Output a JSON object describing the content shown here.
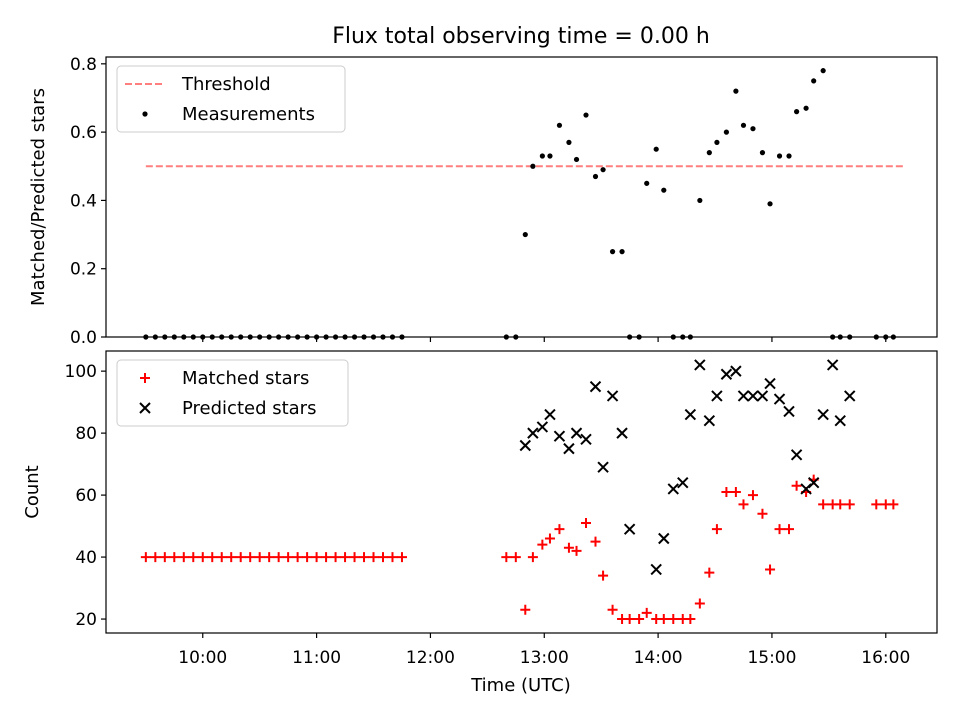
{
  "title": "Flux total observing time = 0.00 h",
  "x_axis": {
    "label": "Time (UTC)",
    "ticks": [
      {
        "t": 10.0,
        "label": "10:00"
      },
      {
        "t": 11.0,
        "label": "11:00"
      },
      {
        "t": 12.0,
        "label": "12:00"
      },
      {
        "t": 13.0,
        "label": "13:00"
      },
      {
        "t": 14.0,
        "label": "14:00"
      },
      {
        "t": 15.0,
        "label": "15:00"
      },
      {
        "t": 16.0,
        "label": "16:00"
      }
    ]
  },
  "chart_data": [
    {
      "type": "line+scatter",
      "ylabel": "Matched/Predicted stars",
      "xlim": [
        "09:09",
        "16:27"
      ],
      "ylim": [
        0,
        0.82
      ],
      "yticks": [
        {
          "v": 0.0,
          "label": "0.0"
        },
        {
          "v": 0.2,
          "label": "0.2"
        },
        {
          "v": 0.4,
          "label": "0.4"
        },
        {
          "v": 0.6,
          "label": "0.6"
        },
        {
          "v": 0.8,
          "label": "0.8"
        }
      ],
      "legend": {
        "position": "top-left",
        "entries": [
          "Threshold",
          "Measurements"
        ]
      },
      "series": [
        {
          "name": "Threshold",
          "style": "dashed-line",
          "color": "#ff7f7f",
          "x": [
            "09:30",
            "16:10"
          ],
          "y": [
            0.5,
            0.5
          ]
        },
        {
          "name": "Measurements",
          "style": "dot",
          "color": "#000000",
          "x": [
            "09:30",
            "09:35",
            "09:40",
            "09:45",
            "09:50",
            "09:55",
            "10:00",
            "10:05",
            "10:10",
            "10:15",
            "10:20",
            "10:25",
            "10:30",
            "10:35",
            "10:40",
            "10:45",
            "10:50",
            "10:55",
            "11:00",
            "11:05",
            "11:10",
            "11:15",
            "11:20",
            "11:25",
            "11:30",
            "11:35",
            "11:40",
            "11:45",
            "12:40",
            "12:45",
            "12:50",
            "12:54",
            "12:59",
            "13:03",
            "13:08",
            "13:13",
            "13:17",
            "13:22",
            "13:27",
            "13:31",
            "13:36",
            "13:41",
            "13:45",
            "13:50",
            "13:54",
            "13:59",
            "14:03",
            "14:08",
            "14:13",
            "14:17",
            "14:22",
            "14:27",
            "14:31",
            "14:36",
            "14:41",
            "14:45",
            "14:50",
            "14:55",
            "14:59",
            "15:04",
            "15:09",
            "15:13",
            "15:18",
            "15:22",
            "15:27",
            "15:32",
            "15:36",
            "15:41",
            "15:55",
            "16:00",
            "16:04"
          ],
          "y": [
            0,
            0,
            0,
            0,
            0,
            0,
            0,
            0,
            0,
            0,
            0,
            0,
            0,
            0,
            0,
            0,
            0,
            0,
            0,
            0,
            0,
            0,
            0,
            0,
            0,
            0,
            0,
            0,
            0,
            0,
            0.3,
            0.5,
            0.53,
            0.53,
            0.62,
            0.57,
            0.52,
            0.65,
            0.47,
            0.49,
            0.25,
            0.25,
            0,
            0,
            0.45,
            0.55,
            0.43,
            0,
            0,
            0,
            0.4,
            0.54,
            0.57,
            0.6,
            0.72,
            0.62,
            0.61,
            0.54,
            0.39,
            0.53,
            0.53,
            0.66,
            0.67,
            0.75,
            0.78,
            0,
            0,
            0,
            0,
            0,
            0
          ]
        }
      ]
    },
    {
      "type": "scatter",
      "ylabel": "Count",
      "xlim": [
        "09:09",
        "16:27"
      ],
      "ylim": [
        15.5,
        106.5
      ],
      "yticks": [
        {
          "v": 20,
          "label": "20"
        },
        {
          "v": 40,
          "label": "40"
        },
        {
          "v": 60,
          "label": "60"
        },
        {
          "v": 80,
          "label": "80"
        },
        {
          "v": 100,
          "label": "100"
        }
      ],
      "legend": {
        "position": "top-left",
        "entries": [
          "Matched stars",
          "Predicted stars"
        ]
      },
      "series": [
        {
          "name": "Matched stars",
          "marker": "plus",
          "color": "#ff0000",
          "x": [
            "09:30",
            "09:35",
            "09:40",
            "09:45",
            "09:50",
            "09:55",
            "10:00",
            "10:05",
            "10:10",
            "10:15",
            "10:20",
            "10:25",
            "10:30",
            "10:35",
            "10:40",
            "10:45",
            "10:50",
            "10:55",
            "11:00",
            "11:05",
            "11:10",
            "11:15",
            "11:20",
            "11:25",
            "11:30",
            "11:35",
            "11:40",
            "11:45",
            "12:40",
            "12:45",
            "12:50",
            "12:54",
            "12:59",
            "13:03",
            "13:08",
            "13:13",
            "13:17",
            "13:22",
            "13:27",
            "13:31",
            "13:36",
            "13:41",
            "13:45",
            "13:50",
            "13:54",
            "13:59",
            "14:03",
            "14:08",
            "14:13",
            "14:17",
            "14:22",
            "14:27",
            "14:31",
            "14:36",
            "14:41",
            "14:45",
            "14:50",
            "14:55",
            "14:59",
            "15:04",
            "15:09",
            "15:13",
            "15:18",
            "15:22",
            "15:27",
            "15:32",
            "15:36",
            "15:41",
            "15:55",
            "16:00",
            "16:04"
          ],
          "y": [
            40,
            40,
            40,
            40,
            40,
            40,
            40,
            40,
            40,
            40,
            40,
            40,
            40,
            40,
            40,
            40,
            40,
            40,
            40,
            40,
            40,
            40,
            40,
            40,
            40,
            40,
            40,
            40,
            40,
            40,
            23,
            40,
            44,
            46,
            49,
            43,
            42,
            51,
            45,
            34,
            23,
            20,
            20,
            20,
            22,
            20,
            20,
            20,
            20,
            20,
            25,
            35,
            49,
            61,
            61,
            57,
            60,
            54,
            36,
            49,
            49,
            63,
            61,
            65,
            57,
            57,
            57,
            57,
            57,
            57,
            57
          ]
        },
        {
          "name": "Predicted stars",
          "marker": "x",
          "color": "#000000",
          "x": [
            "12:50",
            "12:54",
            "12:59",
            "13:03",
            "13:08",
            "13:13",
            "13:17",
            "13:22",
            "13:27",
            "13:31",
            "13:36",
            "13:41",
            "13:45",
            "13:59",
            "14:03",
            "14:08",
            "14:13",
            "14:17",
            "14:22",
            "14:27",
            "14:31",
            "14:36",
            "14:41",
            "14:45",
            "14:50",
            "14:55",
            "14:59",
            "15:04",
            "15:09",
            "15:13",
            "15:18",
            "15:22",
            "15:27",
            "15:32",
            "15:36",
            "15:41"
          ],
          "y": [
            76,
            80,
            82,
            86,
            79,
            75,
            80,
            78,
            95,
            69,
            92,
            80,
            49,
            36,
            46,
            62,
            64,
            86,
            102,
            84,
            92,
            99,
            100,
            92,
            92,
            92,
            96,
            91,
            87,
            73,
            62,
            64,
            86,
            102,
            84,
            92
          ]
        }
      ]
    }
  ]
}
